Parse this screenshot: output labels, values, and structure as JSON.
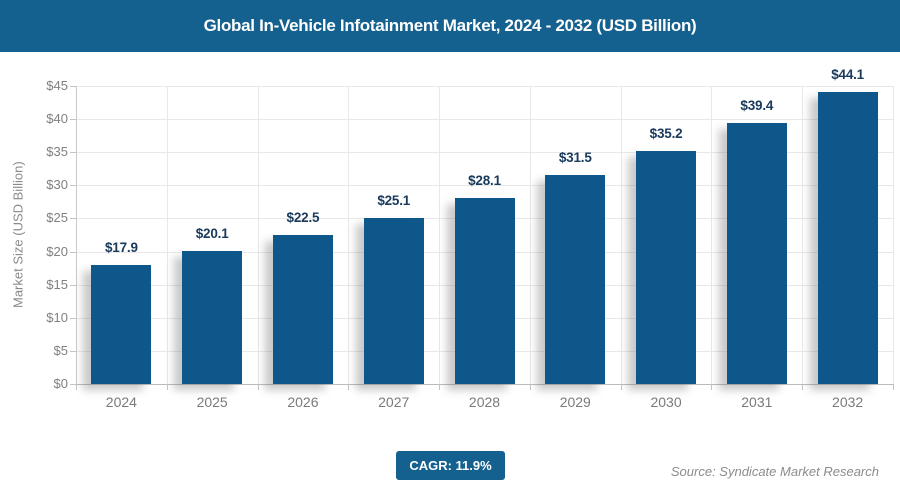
{
  "header": {
    "title": "Global In-Vehicle Infotainment Market, 2024 - 2032 (USD Billion)",
    "bg_color": "#14608e",
    "text_color": "#ffffff"
  },
  "chart_data": {
    "type": "bar",
    "title": "Global In-Vehicle Infotainment Market, 2024 - 2032 (USD Billion)",
    "categories": [
      "2024",
      "2025",
      "2026",
      "2027",
      "2028",
      "2029",
      "2030",
      "2031",
      "2032"
    ],
    "values": [
      17.9,
      20.1,
      22.5,
      25.1,
      28.1,
      31.5,
      35.2,
      39.4,
      44.1
    ],
    "value_labels": [
      "$17.9",
      "$20.1",
      "$22.5",
      "$25.1",
      "$28.1",
      "$31.5",
      "$35.2",
      "$39.4",
      "$44.1"
    ],
    "xlabel": "",
    "ylabel": "Market Size (USD Billion)",
    "ylim": [
      0,
      45
    ],
    "ytick_step": 5,
    "ytick_labels": [
      "$0",
      "$5",
      "$10",
      "$15",
      "$20",
      "$25",
      "$30",
      "$35",
      "$40",
      "$45"
    ],
    "grid": true,
    "legend": "none",
    "bar_color": "#0e578a",
    "value_label_color": "#1a3a5c"
  },
  "footer": {
    "cagr_label": "CAGR: 11.9%",
    "source": "Source: Syndicate Market Research"
  }
}
